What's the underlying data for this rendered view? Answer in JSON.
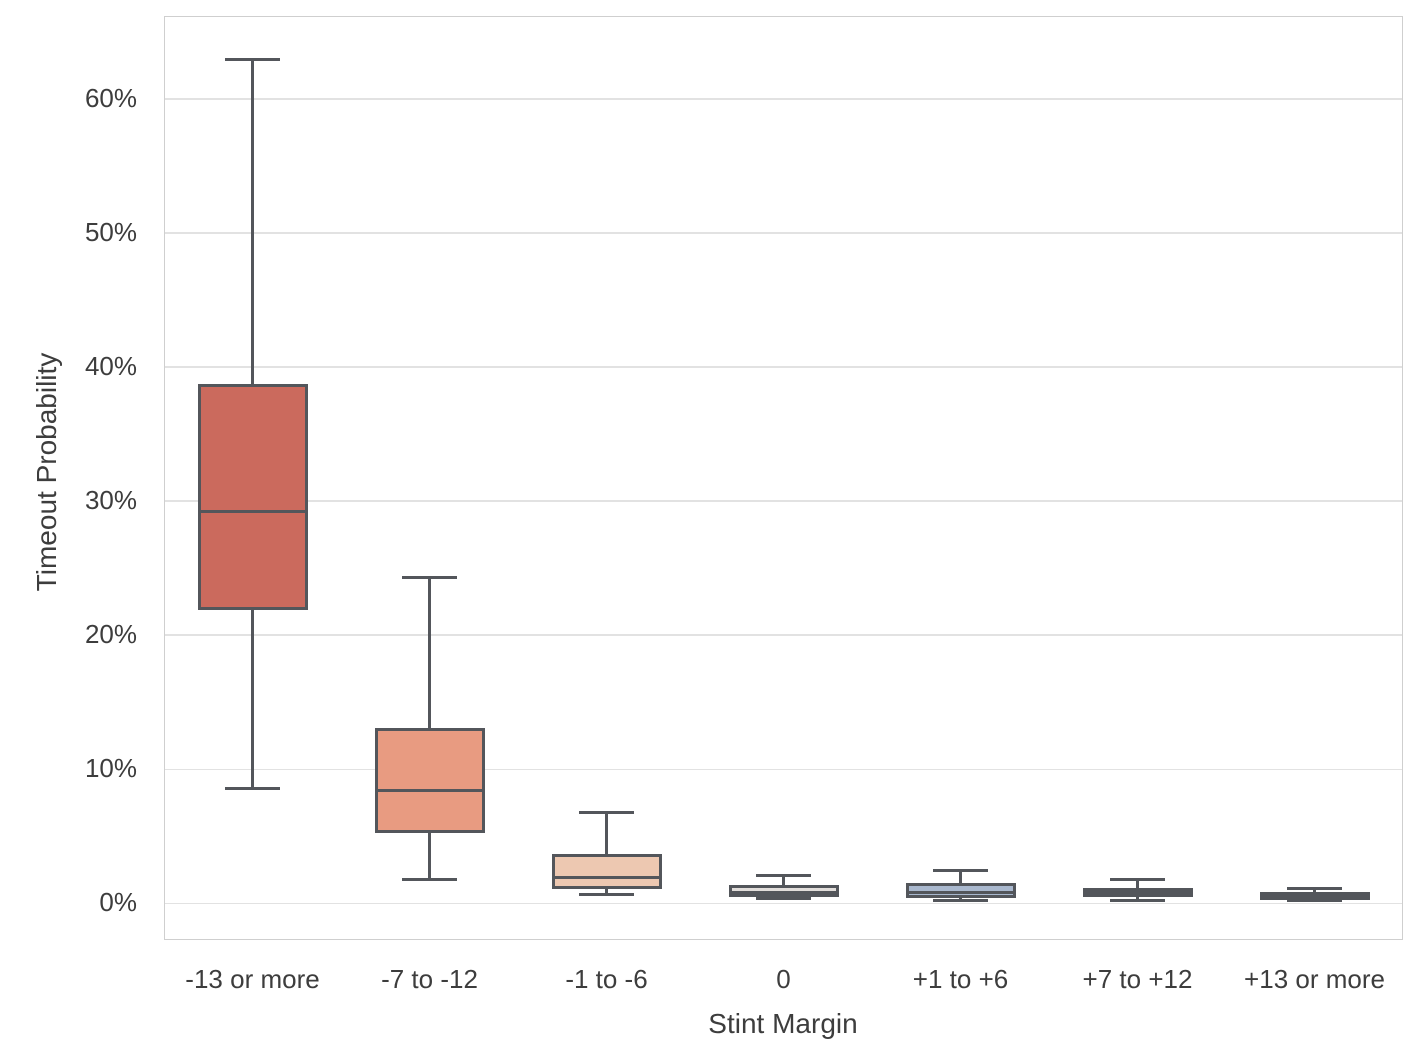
{
  "figure": {
    "background_color": "#ffffff",
    "text_color": "#3d3d3d",
    "grid_color": "#e2e2e2",
    "spine_color": "#cfcfcf",
    "box_line_color": "#53565b"
  },
  "chart_data": {
    "type": "box",
    "title": "",
    "xlabel": "Stint Margin",
    "ylabel": "Timeout Probability",
    "unit": "%",
    "grid": "horizontal",
    "legend": "none",
    "ylim": [
      -2.8,
      66.1
    ],
    "y_ticks": [
      {
        "label": "0%",
        "value": 0
      },
      {
        "label": "10%",
        "value": 10
      },
      {
        "label": "20%",
        "value": 20
      },
      {
        "label": "30%",
        "value": 30
      },
      {
        "label": "40%",
        "value": 40
      },
      {
        "label": "50%",
        "value": 50
      },
      {
        "label": "60%",
        "value": 60
      }
    ],
    "categories": [
      "-13 or more",
      "-7 to -12",
      "-1 to -6",
      "0",
      "+1 to +6",
      "+7 to +12",
      "+13 or more"
    ],
    "boxes": [
      {
        "category": "-13 or more",
        "whisker_low": 8.6,
        "q1": 22.0,
        "median": 29.2,
        "q3": 38.6,
        "whisker_high": 62.9,
        "fill": "#cb6a5d"
      },
      {
        "category": "-7 to -12",
        "whisker_low": 1.8,
        "q1": 5.4,
        "median": 8.4,
        "q3": 13.0,
        "whisker_high": 24.3,
        "fill": "#e89b81"
      },
      {
        "category": "-1 to -6",
        "whisker_low": 0.7,
        "q1": 1.2,
        "median": 1.9,
        "q3": 3.6,
        "whisker_high": 6.8,
        "fill": "#edc8b1"
      },
      {
        "category": "0",
        "whisker_low": 0.35,
        "q1": 0.6,
        "median": 0.8,
        "q3": 1.25,
        "whisker_high": 2.1,
        "fill": "#e2dedb"
      },
      {
        "category": "+1 to +6",
        "whisker_low": 0.25,
        "q1": 0.55,
        "median": 0.8,
        "q3": 1.4,
        "whisker_high": 2.45,
        "fill": "#a9b8ce"
      },
      {
        "category": "+7 to +12",
        "whisker_low": 0.2,
        "q1": 0.6,
        "median": 0.8,
        "q3": 1.05,
        "whisker_high": 1.75,
        "fill": "#7d97bb"
      },
      {
        "category": "+13 or more",
        "whisker_low": 0.2,
        "q1": 0.4,
        "median": 0.55,
        "q3": 0.75,
        "whisker_high": 1.15,
        "fill": "#5c7ba8"
      }
    ]
  }
}
